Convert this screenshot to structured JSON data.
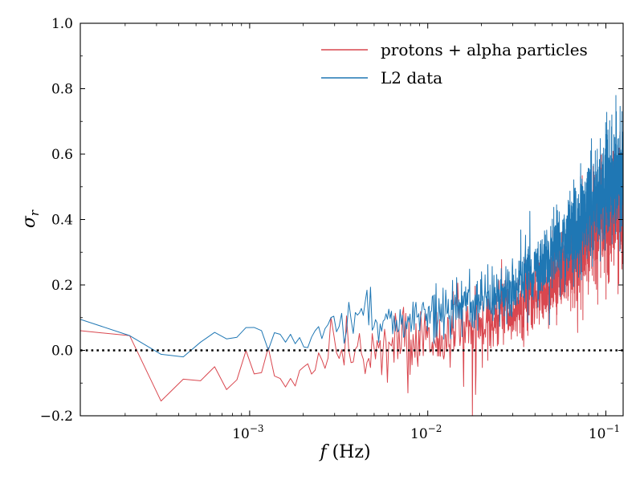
{
  "chart_data": {
    "type": "line",
    "title": "",
    "xlabel": "f (Hz)",
    "ylabel": "σr",
    "xscale": "log",
    "xlim": [
      0.000112,
      0.125
    ],
    "ylim": [
      -0.2,
      1.0
    ],
    "yticks": [
      -0.2,
      0.0,
      0.2,
      0.4,
      0.6,
      0.8,
      1.0
    ],
    "ytick_labels": [
      "−0.2",
      "0.0",
      "0.2",
      "0.4",
      "0.6",
      "0.8",
      "1.0"
    ],
    "xticks_major": [
      0.001,
      0.01,
      0.1
    ],
    "xtick_labels": [
      {
        "base": "10",
        "exp": "−3"
      },
      {
        "base": "10",
        "exp": "−2"
      },
      {
        "base": "10",
        "exp": "−1"
      }
    ],
    "reference_line": {
      "y": 0.0,
      "style": "dotted",
      "color": "#000000"
    },
    "legend_position": "top-right",
    "series": [
      {
        "name": "protons + alpha particles",
        "color": "#d9474f",
        "anchors": [
          [
            0.000112,
            0.06
          ],
          [
            0.000212,
            0.045
          ],
          [
            0.000318,
            -0.155
          ],
          [
            0.000424,
            -0.088
          ],
          [
            0.00053,
            -0.093
          ],
          [
            0.000636,
            -0.05
          ],
          [
            0.000742,
            -0.12
          ],
          [
            0.000848,
            -0.09
          ],
          [
            0.000955,
            0.0
          ],
          [
            0.00106,
            -0.072
          ],
          [
            0.00117,
            -0.068
          ],
          [
            0.00127,
            0.01
          ],
          [
            0.00138,
            -0.08
          ],
          [
            0.00148,
            -0.085
          ],
          [
            0.00159,
            -0.112
          ],
          [
            0.0017,
            -0.085
          ],
          [
            0.0018,
            -0.11
          ],
          [
            0.0019,
            -0.06
          ],
          [
            0.002,
            -0.08
          ],
          [
            0.0023,
            -0.07
          ],
          [
            0.003,
            0.02
          ],
          [
            0.004,
            -0.04
          ],
          [
            0.006,
            0.0
          ],
          [
            0.01,
            0.03
          ],
          [
            0.015,
            0.06
          ],
          [
            0.02,
            0.08
          ],
          [
            0.03,
            0.12
          ],
          [
            0.05,
            0.2
          ],
          [
            0.07,
            0.3
          ],
          [
            0.1,
            0.41
          ],
          [
            0.125,
            0.45
          ]
        ],
        "noise": [
          [
            0.002,
            0.04
          ],
          [
            0.005,
            0.05
          ],
          [
            0.01,
            0.06
          ],
          [
            0.03,
            0.06
          ],
          [
            0.1,
            0.08
          ],
          [
            0.125,
            0.09
          ]
        ],
        "spikes": [
          [
            0.0077,
            -0.13
          ],
          [
            0.0178,
            -0.2
          ],
          [
            0.0186,
            -0.135
          ],
          [
            0.111,
            0.26
          ]
        ]
      },
      {
        "name": "L2 data",
        "color": "#1f77b4",
        "anchors": [
          [
            0.000112,
            0.095
          ],
          [
            0.000212,
            0.045
          ],
          [
            0.000318,
            -0.012
          ],
          [
            0.000424,
            -0.02
          ],
          [
            0.00053,
            0.025
          ],
          [
            0.000636,
            0.055
          ],
          [
            0.000742,
            0.035
          ],
          [
            0.000848,
            0.04
          ],
          [
            0.000955,
            0.07
          ],
          [
            0.00106,
            0.07
          ],
          [
            0.00117,
            0.06
          ],
          [
            0.00127,
            0.0
          ],
          [
            0.00138,
            0.055
          ],
          [
            0.00148,
            0.05
          ],
          [
            0.00159,
            0.025
          ],
          [
            0.0017,
            0.05
          ],
          [
            0.0018,
            0.02
          ],
          [
            0.0019,
            0.04
          ],
          [
            0.0021,
            0.02
          ],
          [
            0.0025,
            0.07
          ],
          [
            0.003,
            0.08
          ],
          [
            0.005,
            0.09
          ],
          [
            0.008,
            0.1
          ],
          [
            0.01,
            0.12
          ],
          [
            0.02,
            0.15
          ],
          [
            0.03,
            0.19
          ],
          [
            0.05,
            0.3
          ],
          [
            0.07,
            0.38
          ],
          [
            0.1,
            0.5
          ],
          [
            0.125,
            0.55
          ]
        ],
        "noise": [
          [
            0.002,
            0.03
          ],
          [
            0.005,
            0.035
          ],
          [
            0.01,
            0.04
          ],
          [
            0.03,
            0.05
          ],
          [
            0.1,
            0.08
          ],
          [
            0.125,
            0.09
          ]
        ],
        "spikes": [
          [
            0.108,
            0.72
          ]
        ]
      }
    ]
  }
}
